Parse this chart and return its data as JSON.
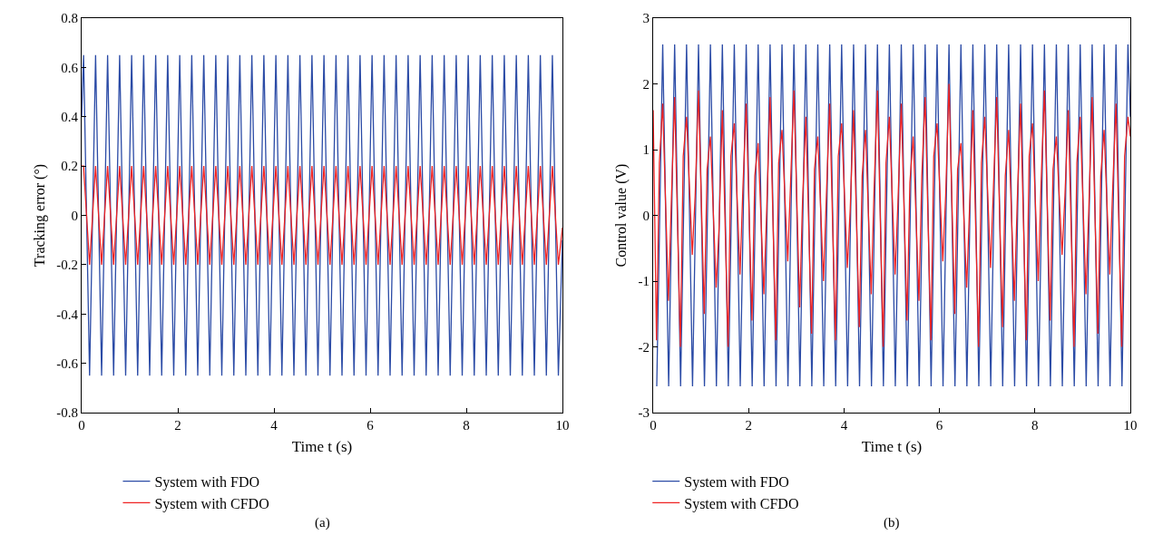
{
  "chart_data": [
    {
      "type": "line",
      "xlabel": "Time t (s)",
      "ylabel": "Tracking error (°)",
      "xlim": [
        0,
        10
      ],
      "xticks": [
        0,
        2,
        4,
        6,
        8,
        10
      ],
      "ylim": [
        -0.8,
        0.8
      ],
      "yticks": [
        -0.8,
        -0.6,
        -0.4,
        -0.2,
        0,
        0.2,
        0.4,
        0.6,
        0.8
      ],
      "legend": "bottom",
      "marker": "none",
      "line_style": "solid",
      "annotations": [
        "(a)"
      ],
      "x": [
        0,
        0.04,
        0.165,
        0.29,
        0.415,
        0.54,
        0.665,
        0.79,
        0.915,
        1.04,
        1.165,
        1.29,
        1.415,
        1.54,
        1.665,
        1.79,
        1.915,
        2.04,
        2.165,
        2.29,
        2.415,
        2.54,
        2.665,
        2.79,
        2.915,
        3.04,
        3.165,
        3.29,
        3.415,
        3.54,
        3.665,
        3.79,
        3.915,
        4.04,
        4.165,
        4.29,
        4.415,
        4.54,
        4.665,
        4.79,
        4.915,
        5.04,
        5.165,
        5.29,
        5.415,
        5.54,
        5.665,
        5.79,
        5.915,
        6.04,
        6.165,
        6.29,
        6.415,
        6.54,
        6.665,
        6.79,
        6.915,
        7.04,
        7.165,
        7.29,
        7.415,
        7.54,
        7.665,
        7.79,
        7.915,
        8.04,
        8.165,
        8.29,
        8.415,
        8.54,
        8.665,
        8.79,
        8.915,
        9.04,
        9.165,
        9.29,
        9.415,
        9.54,
        9.665,
        9.79,
        9.915,
        10
      ],
      "series": [
        {
          "name": "System with FDO",
          "color": "#2b4ba6",
          "values": [
            0.4,
            0.65,
            -0.65,
            0.65,
            -0.65,
            0.65,
            -0.65,
            0.65,
            -0.65,
            0.65,
            -0.65,
            0.65,
            -0.65,
            0.65,
            -0.65,
            0.65,
            -0.65,
            0.65,
            -0.65,
            0.65,
            -0.65,
            0.65,
            -0.65,
            0.65,
            -0.65,
            0.65,
            -0.65,
            0.65,
            -0.65,
            0.65,
            -0.65,
            0.65,
            -0.65,
            0.65,
            -0.65,
            0.65,
            -0.65,
            0.65,
            -0.65,
            0.65,
            -0.65,
            0.65,
            -0.65,
            0.65,
            -0.65,
            0.65,
            -0.65,
            0.65,
            -0.65,
            0.65,
            -0.65,
            0.65,
            -0.65,
            0.65,
            -0.65,
            0.65,
            -0.65,
            0.65,
            -0.65,
            0.65,
            -0.65,
            0.65,
            -0.65,
            0.65,
            -0.65,
            0.65,
            -0.65,
            0.65,
            -0.65,
            0.65,
            -0.65,
            0.65,
            -0.65,
            0.65,
            -0.65,
            0.65,
            -0.65,
            0.65,
            -0.65,
            0.65,
            -0.65,
            -0.1
          ]
        },
        {
          "name": "System with CFDO",
          "color": "#ee2222",
          "values": [
            0.2,
            0.2,
            -0.2,
            0.2,
            -0.2,
            0.2,
            -0.2,
            0.2,
            -0.2,
            0.2,
            -0.2,
            0.2,
            -0.2,
            0.2,
            -0.2,
            0.2,
            -0.2,
            0.2,
            -0.2,
            0.2,
            -0.2,
            0.2,
            -0.2,
            0.2,
            -0.2,
            0.2,
            -0.2,
            0.2,
            -0.2,
            0.2,
            -0.2,
            0.2,
            -0.2,
            0.2,
            -0.2,
            0.2,
            -0.2,
            0.2,
            -0.2,
            0.2,
            -0.2,
            0.2,
            -0.2,
            0.2,
            -0.2,
            0.2,
            -0.2,
            0.2,
            -0.2,
            0.2,
            -0.2,
            0.2,
            -0.2,
            0.2,
            -0.2,
            0.2,
            -0.2,
            0.2,
            -0.2,
            0.2,
            -0.2,
            0.2,
            -0.2,
            0.2,
            -0.2,
            0.2,
            -0.2,
            0.2,
            -0.2,
            0.2,
            -0.2,
            0.2,
            -0.2,
            0.2,
            -0.2,
            0.2,
            -0.2,
            0.2,
            -0.2,
            0.2,
            -0.2,
            -0.05
          ]
        }
      ]
    },
    {
      "type": "line",
      "xlabel": "Time t (s)",
      "ylabel": "Control value (V)",
      "xlim": [
        0,
        10
      ],
      "xticks": [
        0,
        2,
        4,
        6,
        8,
        10
      ],
      "ylim": [
        -3,
        3
      ],
      "yticks": [
        -3,
        -2,
        -1,
        0,
        1,
        2,
        3
      ],
      "legend": "bottom",
      "marker": "none",
      "line_style": "solid",
      "annotations": [
        "(b)"
      ],
      "series": [
        {
          "name": "System with FDO",
          "color": "#2b4ba6",
          "x": [
            0.075,
            0.2,
            0.325,
            0.45,
            0.575,
            0.7,
            0.825,
            0.95,
            1.075,
            1.2,
            1.325,
            1.45,
            1.575,
            1.7,
            1.825,
            1.95,
            2.075,
            2.2,
            2.325,
            2.45,
            2.575,
            2.7,
            2.825,
            2.95,
            3.075,
            3.2,
            3.325,
            3.45,
            3.575,
            3.7,
            3.825,
            3.95,
            4.075,
            4.2,
            4.325,
            4.45,
            4.575,
            4.7,
            4.825,
            4.95,
            5.075,
            5.2,
            5.325,
            5.45,
            5.575,
            5.7,
            5.825,
            5.95,
            6.075,
            6.2,
            6.325,
            6.45,
            6.575,
            6.7,
            6.825,
            6.95,
            7.075,
            7.2,
            7.325,
            7.45,
            7.575,
            7.7,
            7.825,
            7.95,
            8.075,
            8.2,
            8.325,
            8.45,
            8.575,
            8.7,
            8.825,
            8.95,
            9.075,
            9.2,
            9.325,
            9.45,
            9.575,
            9.7,
            9.825,
            9.95,
            10
          ],
          "values": [
            -2.6,
            2.6,
            -2.6,
            2.6,
            -2.6,
            2.6,
            -2.6,
            2.6,
            -2.6,
            2.6,
            -2.6,
            2.6,
            -2.6,
            2.6,
            -2.6,
            2.6,
            -2.6,
            2.6,
            -2.6,
            2.6,
            -2.6,
            2.6,
            -2.6,
            2.6,
            -2.6,
            2.6,
            -2.6,
            2.6,
            -2.6,
            2.6,
            -2.6,
            2.6,
            -2.6,
            2.6,
            -2.6,
            2.6,
            -2.6,
            2.6,
            -2.6,
            2.6,
            -2.6,
            2.6,
            -2.6,
            2.6,
            -2.6,
            2.6,
            -2.6,
            2.6,
            -2.6,
            2.6,
            -2.6,
            2.6,
            -2.6,
            2.6,
            -2.6,
            2.6,
            -2.6,
            2.6,
            -2.6,
            2.6,
            -2.6,
            2.6,
            -2.6,
            2.6,
            -2.6,
            2.6,
            -2.6,
            2.6,
            -2.6,
            2.6,
            -2.6,
            2.6,
            -2.6,
            2.6,
            -2.6,
            2.6,
            -2.6,
            2.6,
            -2.6,
            2.6,
            1.5
          ]
        },
        {
          "name": "System with CFDO",
          "color": "#ee2222",
          "x": [
            0,
            0.07,
            0.13,
            0.2,
            0.32,
            0.38,
            0.45,
            0.57,
            0.63,
            0.7,
            0.82,
            0.88,
            0.95,
            1.07,
            1.13,
            1.2,
            1.32,
            1.38,
            1.45,
            1.57,
            1.63,
            1.7,
            1.82,
            1.88,
            1.95,
            2.07,
            2.13,
            2.2,
            2.32,
            2.38,
            2.45,
            2.57,
            2.63,
            2.7,
            2.82,
            2.88,
            2.95,
            3.07,
            3.13,
            3.2,
            3.32,
            3.38,
            3.45,
            3.57,
            3.63,
            3.7,
            3.82,
            3.88,
            3.95,
            4.07,
            4.13,
            4.2,
            4.32,
            4.38,
            4.45,
            4.57,
            4.63,
            4.7,
            4.82,
            4.88,
            4.95,
            5.07,
            5.13,
            5.2,
            5.32,
            5.38,
            5.45,
            5.57,
            5.63,
            5.7,
            5.82,
            5.88,
            5.95,
            6.07,
            6.13,
            6.2,
            6.32,
            6.38,
            6.45,
            6.57,
            6.63,
            6.7,
            6.82,
            6.88,
            6.95,
            7.07,
            7.13,
            7.2,
            7.32,
            7.38,
            7.45,
            7.57,
            7.63,
            7.7,
            7.82,
            7.88,
            7.95,
            8.07,
            8.13,
            8.2,
            8.32,
            8.38,
            8.45,
            8.57,
            8.63,
            8.7,
            8.82,
            8.88,
            8.95,
            9.07,
            9.13,
            9.2,
            9.32,
            9.38,
            9.45,
            9.57,
            9.63,
            9.7,
            9.82,
            9.88,
            9.95,
            10
          ],
          "values": [
            1.6,
            -1.9,
            0.8,
            1.7,
            -1.3,
            0.2,
            1.8,
            -2.0,
            0.9,
            1.5,
            -0.6,
            0.3,
            1.9,
            -1.5,
            0.7,
            1.2,
            -1.1,
            -0.2,
            1.6,
            -2.0,
            0.9,
            1.4,
            -0.9,
            0.4,
            1.7,
            -1.6,
            0.6,
            1.1,
            -1.2,
            0.1,
            1.8,
            -1.9,
            0.8,
            1.3,
            -0.7,
            0.5,
            1.9,
            -1.4,
            0.2,
            1.5,
            -1.8,
            0.7,
            1.2,
            -1.0,
            0.3,
            1.7,
            -1.9,
            0.9,
            1.4,
            -0.8,
            0.1,
            1.6,
            -1.7,
            0.6,
            1.3,
            -1.2,
            0.4,
            1.9,
            -2.0,
            0.8,
            1.5,
            -0.9,
            0.2,
            1.7,
            -1.6,
            0.5,
            1.2,
            -1.3,
            0.6,
            1.8,
            -1.9,
            0.9,
            1.4,
            -0.7,
            0.3,
            2.0,
            -1.5,
            0.7,
            1.1,
            -1.1,
            0.1,
            1.6,
            -2.0,
            0.8,
            1.5,
            -0.8,
            0.4,
            1.8,
            -1.7,
            0.6,
            1.3,
            -1.3,
            0.2,
            1.7,
            -1.9,
            0.9,
            1.4,
            -1.0,
            0.5,
            1.9,
            -1.6,
            0.7,
            1.2,
            -0.6,
            0.3,
            1.6,
            -2.0,
            0.8,
            1.5,
            -1.2,
            0.1,
            1.8,
            -1.8,
            0.6,
            1.3,
            -0.9,
            0.4,
            1.7,
            -2.0,
            0.9,
            1.5,
            1.2
          ]
        }
      ]
    }
  ]
}
